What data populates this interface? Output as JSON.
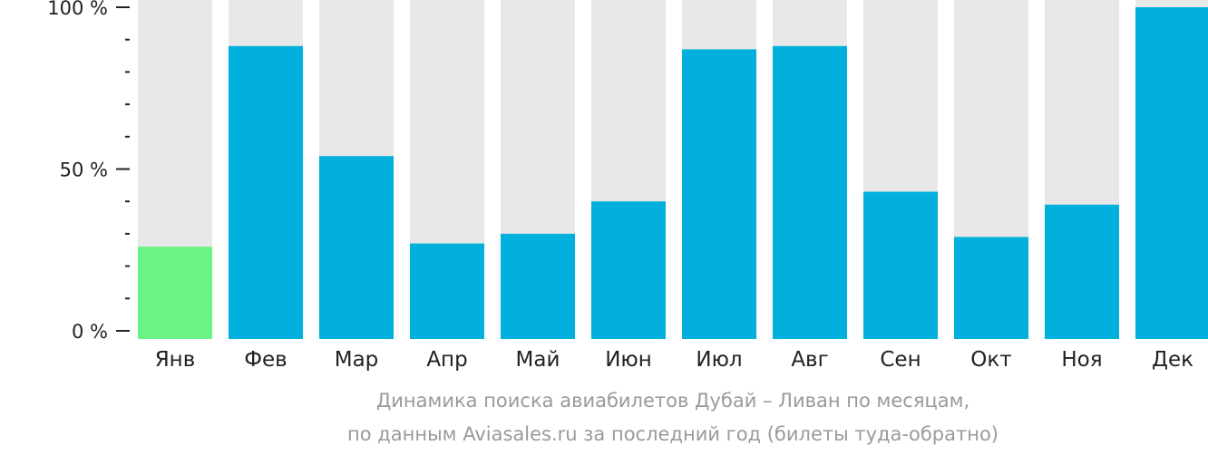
{
  "chart_data": {
    "type": "bar",
    "categories": [
      "Янв",
      "Фев",
      "Мар",
      "Апр",
      "Май",
      "Июн",
      "Июл",
      "Авг",
      "Сен",
      "Окт",
      "Ноя",
      "Дек"
    ],
    "values": [
      26,
      88,
      54,
      27,
      30,
      40,
      87,
      88,
      43,
      29,
      39,
      100
    ],
    "ylim": [
      0,
      100
    ],
    "yticks": [
      {
        "value": 0,
        "label": "0 %"
      },
      {
        "value": 50,
        "label": "50 %"
      },
      {
        "value": 100,
        "label": "100 %"
      }
    ],
    "minor_tick_step": 10,
    "title": "",
    "xlabel": "",
    "ylabel": "",
    "grid": false,
    "legend": "none",
    "colors": {
      "bar": "#01b0dd",
      "highlight_bar": "#6bf385",
      "background_track": "#e8e8e8",
      "axis": "#222222"
    },
    "highlight_index": 0
  },
  "caption": {
    "line1": "Динамика поиска авиабилетов Дубай – Ливан по месяцам,",
    "line2": "по данным Aviasales.ru за последний год (билеты туда-обратно)"
  }
}
